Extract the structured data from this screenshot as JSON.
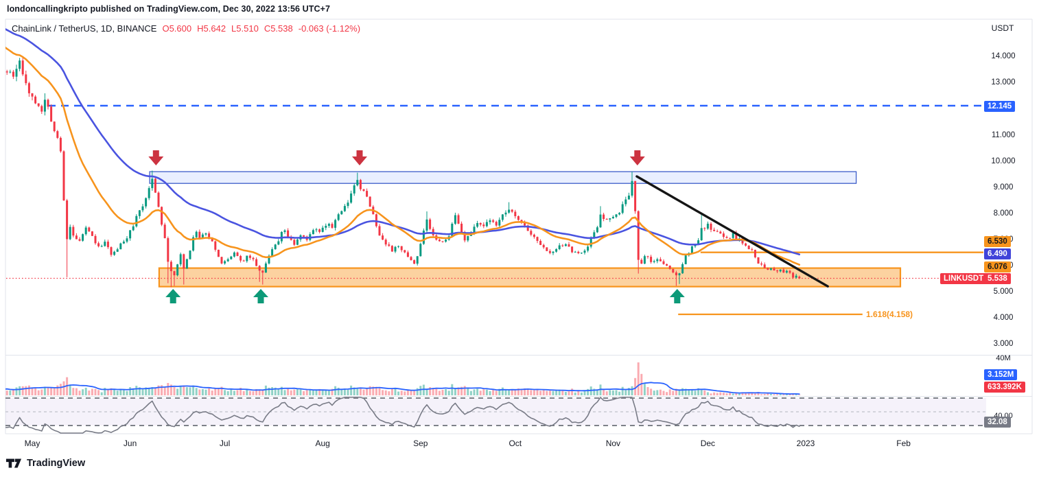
{
  "attribution": "londoncallingkripto published on TradingView.com, Dec 30, 2022 13:56 UTC+7",
  "legend": {
    "symbol": "ChainLink / TetherUS, 1D, BINANCE",
    "open": "O5.600",
    "high": "H5.642",
    "low": "L5.510",
    "close": "C5.538",
    "change": "-0.063 (-1.12%)"
  },
  "price_scale": {
    "currency": "USDT",
    "ticks": [
      {
        "price": 14,
        "label": "14.000"
      },
      {
        "price": 13,
        "label": "13.000"
      },
      {
        "price": 12,
        "label": "12.000"
      },
      {
        "price": 11,
        "label": "11.000"
      },
      {
        "price": 10,
        "label": "10.000"
      },
      {
        "price": 9,
        "label": "9.000"
      },
      {
        "price": 8,
        "label": "8.000"
      },
      {
        "price": 7,
        "label": "7.000"
      },
      {
        "price": 6,
        "label": "6.000"
      },
      {
        "price": 5,
        "label": "5.000"
      },
      {
        "price": 4,
        "label": "4.000"
      },
      {
        "price": 3,
        "label": "3.000"
      }
    ],
    "volume_tick": "40M",
    "rsi_tick": "40.00"
  },
  "time_scale": {
    "labels": [
      {
        "label": "May",
        "day": 6
      },
      {
        "label": "Jun",
        "day": 37
      },
      {
        "label": "Jul",
        "day": 67
      },
      {
        "label": "Aug",
        "day": 98
      },
      {
        "label": "Sep",
        "day": 129
      },
      {
        "label": "Oct",
        "day": 159
      },
      {
        "label": "Nov",
        "day": 190
      },
      {
        "label": "Dec",
        "day": 220
      },
      {
        "label": "2023",
        "day": 251
      },
      {
        "label": "Feb",
        "day": 282
      }
    ]
  },
  "badges": {
    "dashed_level": "12.145",
    "orange_ray": "6.530",
    "ma_slow": "6.490",
    "ma_fast": "6.076",
    "symbol_flag": "LINKUSDT",
    "last_price": "5.538",
    "volume_ma": "3.152M",
    "volume": "633.392K",
    "rsi": "32.08"
  },
  "footer": {
    "brand": "TradingView"
  },
  "chart_data": {
    "type": "candlestick",
    "title": "ChainLink / TetherUS, 1D, BINANCE",
    "exchange": "BINANCE",
    "interval": "1D",
    "last_candle": {
      "open": 5.6,
      "high": 5.642,
      "low": 5.51,
      "close": 5.538,
      "change": -0.063,
      "change_pct": -1.12
    },
    "y_axis_range": [
      2.6,
      15.5
    ],
    "x_axis_days_visible": [
      -4,
      320
    ],
    "price_waypoints": [
      [
        -45,
        16.8
      ],
      [
        -38,
        15.2
      ],
      [
        -30,
        16.2
      ],
      [
        -22,
        14.4
      ],
      [
        -15,
        15.6
      ],
      [
        -8,
        13.8
      ],
      [
        -3,
        13.5
      ],
      [
        0,
        13.4
      ],
      [
        2,
        13.75
      ],
      [
        4,
        13.0
      ],
      [
        5,
        12.7
      ],
      [
        7,
        12.15
      ],
      [
        9,
        12.05
      ],
      [
        10,
        12.45
      ],
      [
        11,
        12.0
      ],
      [
        12,
        11.65
      ],
      [
        13,
        11.25
      ],
      [
        14,
        10.9
      ],
      [
        15,
        10.3
      ],
      [
        16,
        8.6
      ],
      [
        17,
        7.1
      ],
      [
        18,
        7.45
      ],
      [
        19,
        7.2
      ],
      [
        21,
        6.9
      ],
      [
        23,
        7.4
      ],
      [
        25,
        7.15
      ],
      [
        27,
        6.7
      ],
      [
        29,
        6.95
      ],
      [
        31,
        6.5
      ],
      [
        33,
        6.65
      ],
      [
        35,
        6.95
      ],
      [
        37,
        7.3
      ],
      [
        39,
        7.85
      ],
      [
        41,
        8.3
      ],
      [
        43,
        8.95
      ],
      [
        44,
        9.25
      ],
      [
        45,
        8.75
      ],
      [
        46,
        8.2
      ],
      [
        47,
        7.55
      ],
      [
        48,
        7.15
      ],
      [
        49,
        6.15
      ],
      [
        50,
        5.8
      ],
      [
        51,
        5.65
      ],
      [
        52,
        6.1
      ],
      [
        53,
        6.5
      ],
      [
        54,
        5.9
      ],
      [
        55,
        6.25
      ],
      [
        57,
        7.05
      ],
      [
        58,
        7.35
      ],
      [
        59,
        7.1
      ],
      [
        61,
        7.3
      ],
      [
        63,
        6.9
      ],
      [
        65,
        6.4
      ],
      [
        66,
        6.15
      ],
      [
        68,
        6.3
      ],
      [
        70,
        6.5
      ],
      [
        72,
        6.15
      ],
      [
        74,
        6.35
      ],
      [
        76,
        6.2
      ],
      [
        78,
        5.85
      ],
      [
        79,
        5.8
      ],
      [
        81,
        6.4
      ],
      [
        83,
        6.8
      ],
      [
        85,
        7.25
      ],
      [
        86,
        7.4
      ],
      [
        87,
        7.05
      ],
      [
        89,
        6.85
      ],
      [
        91,
        7.2
      ],
      [
        93,
        7.05
      ],
      [
        95,
        7.45
      ],
      [
        97,
        7.35
      ],
      [
        99,
        7.6
      ],
      [
        101,
        7.5
      ],
      [
        103,
        7.95
      ],
      [
        105,
        8.3
      ],
      [
        107,
        8.75
      ],
      [
        109,
        9.3
      ],
      [
        110,
        9.0
      ],
      [
        112,
        8.6
      ],
      [
        114,
        8.0
      ],
      [
        116,
        7.2
      ],
      [
        118,
        6.9
      ],
      [
        120,
        6.6
      ],
      [
        122,
        6.8
      ],
      [
        124,
        6.5
      ],
      [
        126,
        6.25
      ],
      [
        127,
        6.1
      ],
      [
        129,
        6.8
      ],
      [
        131,
        7.8
      ],
      [
        132,
        7.5
      ],
      [
        134,
        7.0
      ],
      [
        136,
        6.9
      ],
      [
        138,
        7.2
      ],
      [
        140,
        7.9
      ],
      [
        141,
        7.6
      ],
      [
        143,
        7.0
      ],
      [
        145,
        7.3
      ],
      [
        147,
        7.7
      ],
      [
        149,
        7.5
      ],
      [
        151,
        7.8
      ],
      [
        153,
        7.6
      ],
      [
        155,
        8.0
      ],
      [
        157,
        8.2
      ],
      [
        159,
        8.0
      ],
      [
        161,
        7.7
      ],
      [
        163,
        7.35
      ],
      [
        165,
        7.1
      ],
      [
        167,
        6.8
      ],
      [
        169,
        6.55
      ],
      [
        171,
        6.5
      ],
      [
        173,
        6.75
      ],
      [
        175,
        6.9
      ],
      [
        177,
        6.6
      ],
      [
        179,
        6.45
      ],
      [
        181,
        6.6
      ],
      [
        183,
        7.0
      ],
      [
        185,
        7.55
      ],
      [
        186,
        7.9
      ],
      [
        188,
        7.75
      ],
      [
        190,
        7.9
      ],
      [
        192,
        8.1
      ],
      [
        194,
        8.5
      ],
      [
        195,
        8.8
      ],
      [
        196,
        9.3
      ],
      [
        197,
        8.1
      ],
      [
        198,
        6.2
      ],
      [
        199,
        6.05
      ],
      [
        200,
        6.4
      ],
      [
        202,
        6.2
      ],
      [
        204,
        6.3
      ],
      [
        206,
        6.05
      ],
      [
        208,
        5.9
      ],
      [
        210,
        5.6
      ],
      [
        211,
        5.75
      ],
      [
        213,
        6.4
      ],
      [
        215,
        6.7
      ],
      [
        217,
        7.0
      ],
      [
        218,
        7.45
      ],
      [
        220,
        7.55
      ],
      [
        222,
        7.4
      ],
      [
        224,
        7.3
      ],
      [
        226,
        7.1
      ],
      [
        228,
        7.2
      ],
      [
        230,
        7.0
      ],
      [
        232,
        6.8
      ],
      [
        234,
        6.6
      ],
      [
        236,
        6.1
      ],
      [
        238,
        5.95
      ],
      [
        240,
        5.9
      ],
      [
        242,
        5.85
      ],
      [
        244,
        5.8
      ],
      [
        246,
        5.72
      ],
      [
        247,
        5.62
      ],
      [
        248,
        5.6
      ],
      [
        249,
        5.538
      ]
    ],
    "candle_overrides": {
      "10": {
        "h": 12.62
      },
      "17": {
        "l": 5.58
      },
      "44": {
        "h": 9.66
      },
      "49": {
        "l": 5.35
      },
      "50": {
        "l": 5.2
      },
      "51": {
        "l": 5.25
      },
      "54": {
        "l": 5.3
      },
      "78": {
        "l": 5.4
      },
      "79": {
        "l": 5.3
      },
      "109": {
        "h": 9.58
      },
      "131": {
        "h": 8.1
      },
      "140": {
        "h": 8.05
      },
      "157": {
        "h": 8.45
      },
      "186": {
        "h": 8.3
      },
      "196": {
        "h": 9.62
      },
      "197": {
        "h": 9.0
      },
      "198": {
        "l": 5.72
      },
      "210": {
        "l": 5.25
      },
      "211": {
        "l": 5.32
      },
      "218": {
        "h": 7.97
      },
      "249": {
        "o": 5.6,
        "h": 5.642,
        "l": 5.51,
        "c": 5.538
      }
    },
    "volume_overrides": {
      "12": 9,
      "13": 10,
      "14": 12,
      "15": 14,
      "16": 17,
      "17": 22,
      "18": 13,
      "19": 9,
      "43": 9,
      "44": 10,
      "45": 9,
      "48": 10,
      "49": 15,
      "50": 13,
      "51": 10,
      "52": 8,
      "109": 9,
      "110": 8,
      "131": 8,
      "157": 7,
      "195": 9,
      "196": 11,
      "197": 21,
      "198": 40,
      "199": 26,
      "200": 14,
      "201": 10,
      "202": 8,
      "210": 8,
      "211": 7,
      "213": 8,
      "218": 7,
      "236": 4,
      "249": 0.633
    },
    "volume_axis_max_m": 40,
    "indicators": {
      "ma_fast": {
        "type": "EMA",
        "period": 21,
        "last": 6.076
      },
      "ma_slow": {
        "type": "EMA",
        "period": 50,
        "last": 6.49
      },
      "volume_ma": {
        "type": "SMA",
        "period": 10,
        "last_m": 3.152
      },
      "rsi": {
        "period": 14,
        "last": 32.08,
        "bands": [
          70,
          50,
          30
        ]
      }
    },
    "levels": {
      "dashed_blue": {
        "price": 12.145,
        "from_d": 11
      },
      "orange_ray": {
        "price": 6.53,
        "from_d": 217.7
      },
      "fib_extension": {
        "price": 4.158,
        "from_d": 210.6,
        "to_d": 269,
        "label": "1.618(4.158)"
      },
      "last_price_line": {
        "price": 5.538
      }
    },
    "zones": {
      "resistance": {
        "d1": 43.2,
        "d2": 267,
        "p1": 9.17,
        "p2": 9.62
      },
      "support": {
        "d1": 46.2,
        "d2": 281,
        "p1": 5.22,
        "p2": 5.93
      }
    },
    "trendline": {
      "d1": 197.5,
      "p1": 9.44,
      "d2": 258,
      "p2": 5.23
    },
    "annotations": {
      "arrows_down_d": [
        45.2,
        109.7,
        197.7
      ],
      "arrows_up_d": [
        50.6,
        78.4,
        210.3
      ]
    },
    "palette": {
      "up": "#089981",
      "down": "#f23645",
      "vol_up": "rgba(8,153,129,0.45)",
      "vol_down": "rgba(242,54,69,0.42)",
      "ma_fast": "#f7941d",
      "ma_slow": "#4a54e0",
      "vol_ma": "#2962ff",
      "rsi_line": "#787b86",
      "dashed_blue": "#2962ff",
      "current_price": "#f23645",
      "zone_res_fill": "rgba(41,98,255,0.10)",
      "zone_res_border": "#3c5dc9",
      "zone_sup_fill": "rgba(247,148,29,0.42)",
      "zone_sup_border": "#f7941d",
      "trendline": "#151515",
      "arrow_down": "#cc3340",
      "arrow_up": "#0d9a78",
      "rsi_band_fill": "rgba(126,87,194,0.08)",
      "rsi_band_edge": "#555a63",
      "rsi_mid": "#b2b5bd",
      "frame": "#e0e3eb"
    }
  }
}
